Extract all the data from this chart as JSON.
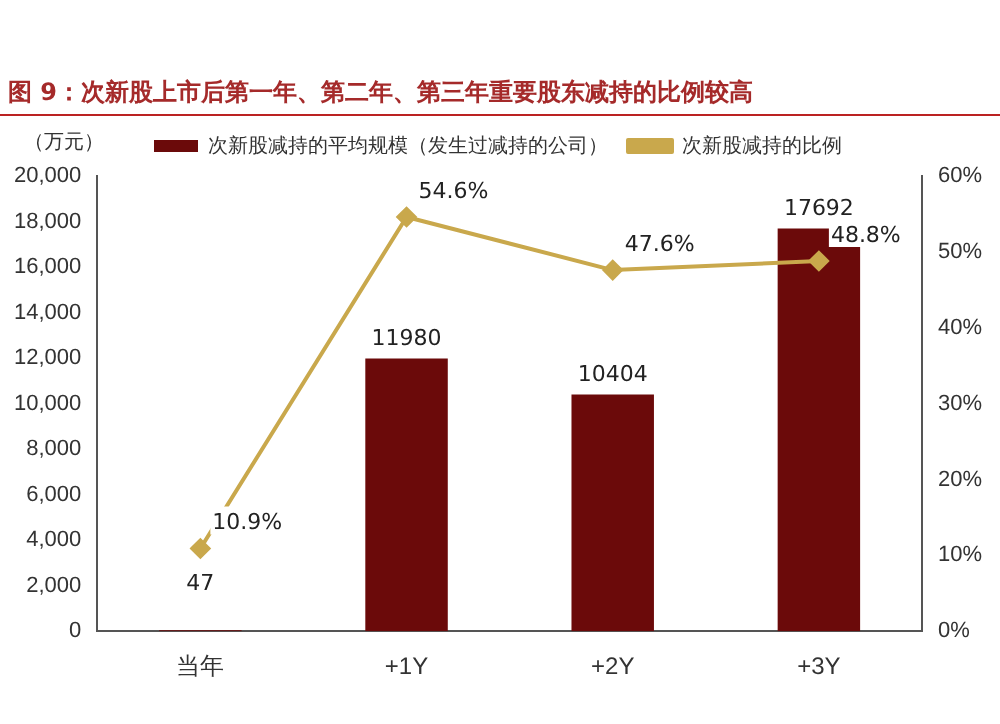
{
  "chart_data": {
    "type": "bar",
    "title": "图 9：次新股上市后第一年、第二年、第三年重要股东减持的比例较高",
    "ylabel": "（万元）",
    "categories": [
      "当年",
      "+1Y",
      "+2Y",
      "+3Y"
    ],
    "series": [
      {
        "name": "次新股减持的平均规模（发生过减持的公司）",
        "color": "#6b0a0a",
        "values": [
          47,
          11980,
          10404,
          17692
        ],
        "value_labels": [
          "47",
          "11980",
          "10404",
          "17692"
        ]
      },
      {
        "name": "次新股减持的比例",
        "type": "line",
        "axis": "y2",
        "color": "#c9a84c",
        "values": [
          10.9,
          54.6,
          47.6,
          48.8
        ],
        "value_labels": [
          "10.9%",
          "54.6%",
          "47.6%",
          "48.8%"
        ]
      }
    ],
    "ylim": [
      0,
      20000
    ],
    "yticks": [
      {
        "value": 0,
        "label": "0"
      },
      {
        "value": 2000,
        "label": "2,000"
      },
      {
        "value": 4000,
        "label": "4,000"
      },
      {
        "value": 6000,
        "label": "6,000"
      },
      {
        "value": 8000,
        "label": "8,000"
      },
      {
        "value": 10000,
        "label": "10,000"
      },
      {
        "value": 12000,
        "label": "12,000"
      },
      {
        "value": 14000,
        "label": "14,000"
      },
      {
        "value": 16000,
        "label": "16,000"
      },
      {
        "value": 18000,
        "label": "18,000"
      },
      {
        "value": 20000,
        "label": "20,000"
      }
    ],
    "y2lim": [
      0,
      60
    ],
    "y2ticks": [
      {
        "value": 0,
        "label": "0%"
      },
      {
        "value": 10,
        "label": "10%"
      },
      {
        "value": 20,
        "label": "20%"
      },
      {
        "value": 30,
        "label": "30%"
      },
      {
        "value": 40,
        "label": "40%"
      },
      {
        "value": 50,
        "label": "50%"
      },
      {
        "value": 60,
        "label": "60%"
      }
    ],
    "legend": "top",
    "grid": false,
    "marker": "diamond"
  }
}
